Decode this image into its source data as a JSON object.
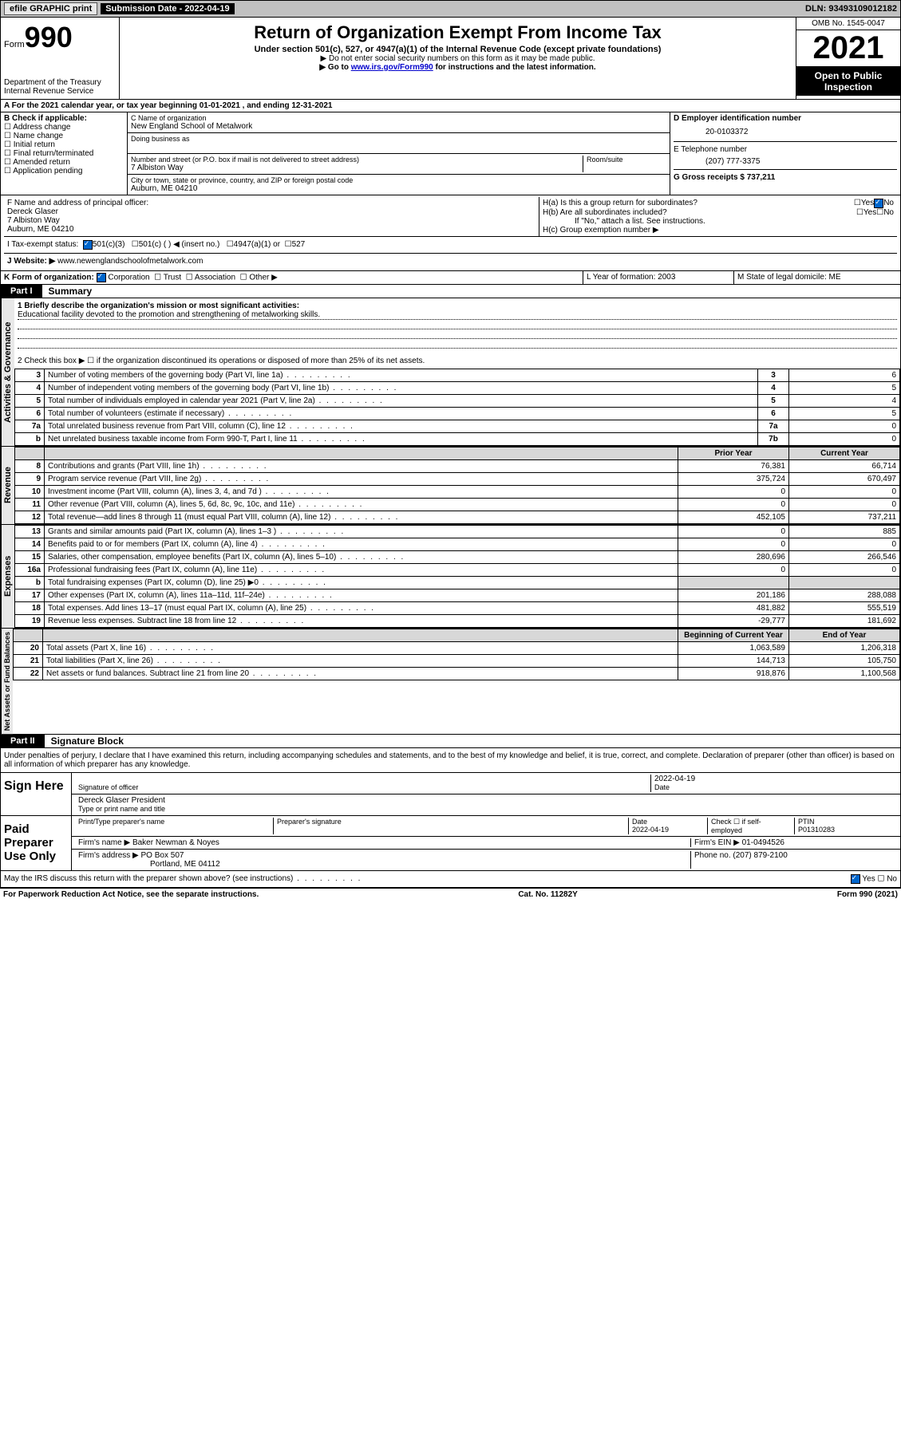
{
  "topbar": {
    "efile": "efile GRAPHIC print",
    "submission_label": "Submission Date - 2022-04-19",
    "dln_label": "DLN: 93493109012182"
  },
  "header": {
    "form_label": "Form",
    "form_number": "990",
    "dept": "Department of the Treasury",
    "irs": "Internal Revenue Service",
    "title": "Return of Organization Exempt From Income Tax",
    "sub": "Under section 501(c), 527, or 4947(a)(1) of the Internal Revenue Code (except private foundations)",
    "note1": "▶ Do not enter social security numbers on this form as it may be made public.",
    "note2_prefix": "▶ Go to ",
    "note2_link": "www.irs.gov/Form990",
    "note2_suffix": " for instructions and the latest information.",
    "omb": "OMB No. 1545-0047",
    "year": "2021",
    "inspect": "Open to Public Inspection"
  },
  "line_a": "For the 2021 calendar year, or tax year beginning 01-01-2021   , and ending 12-31-2021",
  "section_b": {
    "label": "B Check if applicable:",
    "opts": [
      "Address change",
      "Name change",
      "Initial return",
      "Final return/terminated",
      "Amended return",
      "Application pending"
    ]
  },
  "section_c": {
    "name_label": "C Name of organization",
    "name": "New England School of Metalwork",
    "dba_label": "Doing business as",
    "street_label": "Number and street (or P.O. box if mail is not delivered to street address)",
    "room_label": "Room/suite",
    "street": "7 Albiston Way",
    "city_label": "City or town, state or province, country, and ZIP or foreign postal code",
    "city": "Auburn, ME  04210"
  },
  "section_d": {
    "ein_label": "D Employer identification number",
    "ein": "20-0103372",
    "phone_label": "E Telephone number",
    "phone": "(207) 777-3375",
    "gross_label": "G Gross receipts $ 737,211"
  },
  "section_f": {
    "label": "F  Name and address of principal officer:",
    "name": "Dereck Glaser",
    "addr1": "7 Albiston Way",
    "addr2": "Auburn, ME  04210"
  },
  "section_h": {
    "ha": "H(a)  Is this a group return for subordinates?",
    "hb": "H(b)  Are all subordinates included?",
    "hb_note": "If \"No,\" attach a list. See instructions.",
    "hc": "H(c)  Group exemption number ▶"
  },
  "line_i": {
    "label": "I    Tax-exempt status:",
    "opts": [
      "501(c)(3)",
      "501(c) (  ) ◀ (insert no.)",
      "4947(a)(1) or",
      "527"
    ]
  },
  "line_j": {
    "label": "J   Website: ▶",
    "value": "www.newenglandschoolofmetalwork.com"
  },
  "line_k": {
    "label": "K Form of organization:",
    "opts": [
      "Corporation",
      "Trust",
      "Association",
      "Other ▶"
    ]
  },
  "line_l": "L Year of formation: 2003",
  "line_m": "M State of legal domicile: ME",
  "part1": {
    "tab": "Part I",
    "title": "Summary",
    "q1_label": "1   Briefly describe the organization's mission or most significant activities:",
    "q1_text": "Educational facility devoted to the promotion and strengthening of metalworking skills.",
    "q2": "2   Check this box ▶ ☐  if the organization discontinued its operations or disposed of more than 25% of its net assets.",
    "rows_gov": [
      {
        "n": "3",
        "t": "Number of voting members of the governing body (Part VI, line 1a)",
        "box": "3",
        "v": "6"
      },
      {
        "n": "4",
        "t": "Number of independent voting members of the governing body (Part VI, line 1b)",
        "box": "4",
        "v": "5"
      },
      {
        "n": "5",
        "t": "Total number of individuals employed in calendar year 2021 (Part V, line 2a)",
        "box": "5",
        "v": "4"
      },
      {
        "n": "6",
        "t": "Total number of volunteers (estimate if necessary)",
        "box": "6",
        "v": "5"
      },
      {
        "n": "7a",
        "t": "Total unrelated business revenue from Part VIII, column (C), line 12",
        "box": "7a",
        "v": "0"
      },
      {
        "n": "b",
        "t": "Net unrelated business taxable income from Form 990-T, Part I, line 11",
        "box": "7b",
        "v": "0"
      }
    ],
    "hdr_prior": "Prior Year",
    "hdr_curr": "Current Year",
    "rows_rev": [
      {
        "n": "8",
        "t": "Contributions and grants (Part VIII, line 1h)",
        "p": "76,381",
        "c": "66,714"
      },
      {
        "n": "9",
        "t": "Program service revenue (Part VIII, line 2g)",
        "p": "375,724",
        "c": "670,497"
      },
      {
        "n": "10",
        "t": "Investment income (Part VIII, column (A), lines 3, 4, and 7d )",
        "p": "0",
        "c": "0"
      },
      {
        "n": "11",
        "t": "Other revenue (Part VIII, column (A), lines 5, 6d, 8c, 9c, 10c, and 11e)",
        "p": "0",
        "c": "0"
      },
      {
        "n": "12",
        "t": "Total revenue—add lines 8 through 11 (must equal Part VIII, column (A), line 12)",
        "p": "452,105",
        "c": "737,211"
      }
    ],
    "rows_exp": [
      {
        "n": "13",
        "t": "Grants and similar amounts paid (Part IX, column (A), lines 1–3 )",
        "p": "0",
        "c": "885"
      },
      {
        "n": "14",
        "t": "Benefits paid to or for members (Part IX, column (A), line 4)",
        "p": "0",
        "c": "0"
      },
      {
        "n": "15",
        "t": "Salaries, other compensation, employee benefits (Part IX, column (A), lines 5–10)",
        "p": "280,696",
        "c": "266,546"
      },
      {
        "n": "16a",
        "t": "Professional fundraising fees (Part IX, column (A), line 11e)",
        "p": "0",
        "c": "0"
      },
      {
        "n": "b",
        "t": "Total fundraising expenses (Part IX, column (D), line 25) ▶0",
        "p": "",
        "c": "",
        "shade": true
      },
      {
        "n": "17",
        "t": "Other expenses (Part IX, column (A), lines 11a–11d, 11f–24e)",
        "p": "201,186",
        "c": "288,088"
      },
      {
        "n": "18",
        "t": "Total expenses. Add lines 13–17 (must equal Part IX, column (A), line 25)",
        "p": "481,882",
        "c": "555,519"
      },
      {
        "n": "19",
        "t": "Revenue less expenses. Subtract line 18 from line 12",
        "p": "-29,777",
        "c": "181,692"
      }
    ],
    "hdr_beg": "Beginning of Current Year",
    "hdr_end": "End of Year",
    "rows_net": [
      {
        "n": "20",
        "t": "Total assets (Part X, line 16)",
        "p": "1,063,589",
        "c": "1,206,318"
      },
      {
        "n": "21",
        "t": "Total liabilities (Part X, line 26)",
        "p": "144,713",
        "c": "105,750"
      },
      {
        "n": "22",
        "t": "Net assets or fund balances. Subtract line 21 from line 20",
        "p": "918,876",
        "c": "1,100,568"
      }
    ],
    "vtab_gov": "Activities & Governance",
    "vtab_rev": "Revenue",
    "vtab_exp": "Expenses",
    "vtab_net": "Net Assets or Fund Balances"
  },
  "part2": {
    "tab": "Part II",
    "title": "Signature Block",
    "decl": "Under penalties of perjury, I declare that I have examined this return, including accompanying schedules and statements, and to the best of my knowledge and belief, it is true, correct, and complete. Declaration of preparer (other than officer) is based on all information of which preparer has any knowledge."
  },
  "sign": {
    "left": "Sign Here",
    "sig_label": "Signature of officer",
    "date": "2022-04-19",
    "date_label": "Date",
    "name": "Dereck Glaser  President",
    "name_label": "Type or print name and title"
  },
  "paid": {
    "left": "Paid Preparer Use Only",
    "h1": "Print/Type preparer's name",
    "h2": "Preparer's signature",
    "h3_label": "Date",
    "h3": "2022-04-19",
    "h4": "Check ☐ if self-employed",
    "h5_label": "PTIN",
    "h5": "P01310283",
    "firm_label": "Firm's name    ▶",
    "firm": "Baker Newman & Noyes",
    "ein_label": "Firm's EIN ▶",
    "ein": "01-0494526",
    "addr_label": "Firm's address ▶",
    "addr1": "PO Box 507",
    "addr2": "Portland, ME  04112",
    "phone_label": "Phone no.",
    "phone": "(207) 879-2100"
  },
  "discuss": "May the IRS discuss this return with the preparer shown above? (see instructions)",
  "footer": {
    "left": "For Paperwork Reduction Act Notice, see the separate instructions.",
    "mid": "Cat. No. 11282Y",
    "right": "Form 990 (2021)"
  }
}
